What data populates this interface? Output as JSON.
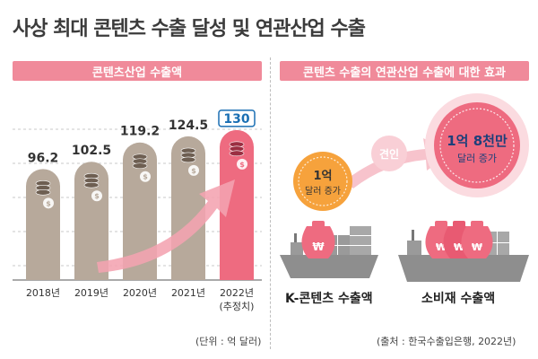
{
  "title": "사상 최대 콘텐츠 수출 달성 및 연관산업 수출",
  "left_panel": {
    "header": "콘텐츠산업 수출액",
    "unit_note": "(단위 : 억 달러)"
  },
  "right_panel": {
    "header": "콘텐츠 수출의 연관산업 수출에 대한 효과",
    "small_bubble_line1": "1억",
    "small_bubble_line2": "달러 증가",
    "arrow_label": "견인",
    "big_bubble_line1": "1억 8천만",
    "big_bubble_line2": "달러 증가",
    "ship1_label": "K-콘텐츠 수출액",
    "ship2_label": "소비재 수출액",
    "money_symbol": "₩",
    "source": "(출처 : 한국수출입은행, 2022년)"
  },
  "colors": {
    "bar": "#b7a99b",
    "highlight_bar": "#ee6b80",
    "header": "#f08a9a",
    "arrow": "#f4a3b0",
    "coin": "#f6a23c",
    "big_bubble": "#ee6b80",
    "highlight_value": "#1a6fb3"
  },
  "chart_data": {
    "type": "bar",
    "categories": [
      "2018년",
      "2019년",
      "2020년",
      "2021년",
      "2022년"
    ],
    "category_notes": [
      "",
      "",
      "",
      "",
      "(추정치)"
    ],
    "values": [
      96.2,
      102.5,
      119.2,
      124.5,
      130
    ],
    "value_labels": [
      "96.2",
      "102.5",
      "119.2",
      "124.5",
      "130"
    ],
    "highlight_index": 4,
    "title": "콘텐츠산업 수출액",
    "ylabel": "",
    "xlabel": "",
    "unit": "억 달러",
    "grid": true,
    "ylim": [
      0,
      140
    ]
  }
}
